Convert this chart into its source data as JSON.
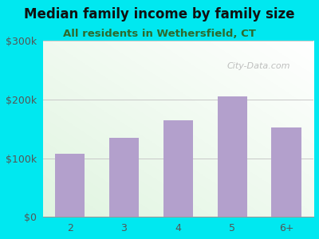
{
  "title": "Median family income by family size",
  "subtitle": "All residents in Wethersfield, CT",
  "categories": [
    "2",
    "3",
    "4",
    "5",
    "6+"
  ],
  "values": [
    108000,
    135000,
    165000,
    205000,
    152000
  ],
  "bar_color": "#b3a0cc",
  "ylim": [
    0,
    300000
  ],
  "yticks": [
    0,
    100000,
    200000,
    300000
  ],
  "ytick_labels": [
    "$0",
    "$100k",
    "$200k",
    "$300k"
  ],
  "background_outer": "#00e8f0",
  "grid_color": "#c8c8c8",
  "title_color": "#111111",
  "subtitle_color": "#2d6a2d",
  "watermark": "City-Data.com",
  "title_fontsize": 12,
  "subtitle_fontsize": 9.5,
  "tick_color": "#555555",
  "tick_fontsize": 9
}
